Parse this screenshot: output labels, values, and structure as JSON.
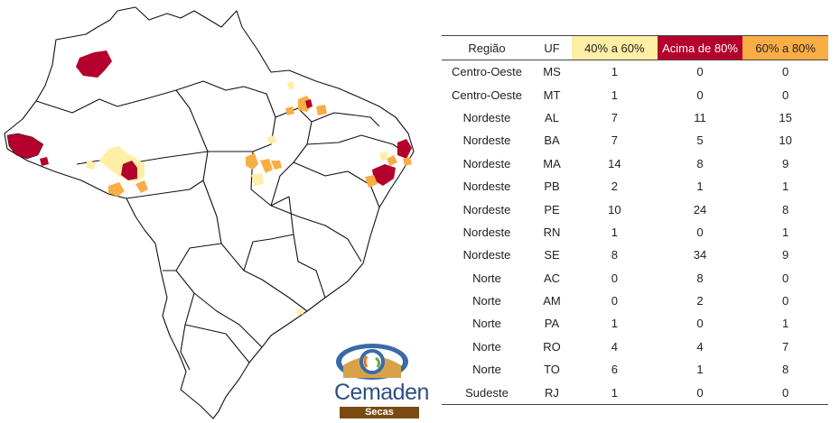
{
  "table": {
    "headers": [
      "Região",
      "UF",
      "40% a 60%",
      "Acima de 80%",
      "60% a 80%"
    ],
    "header_colors": [
      "#ffffff",
      "#ffffff",
      "#ffeea5",
      "#b3002d",
      "#f9ad45"
    ],
    "rows": [
      [
        "Centro-Oeste",
        "MS",
        "1",
        "0",
        "0"
      ],
      [
        "Centro-Oeste",
        "MT",
        "1",
        "0",
        "0"
      ],
      [
        "Nordeste",
        "AL",
        "7",
        "11",
        "15"
      ],
      [
        "Nordeste",
        "BA",
        "7",
        "5",
        "10"
      ],
      [
        "Nordeste",
        "MA",
        "14",
        "8",
        "9"
      ],
      [
        "Nordeste",
        "PB",
        "2",
        "1",
        "1"
      ],
      [
        "Nordeste",
        "PE",
        "10",
        "24",
        "8"
      ],
      [
        "Nordeste",
        "RN",
        "1",
        "0",
        "1"
      ],
      [
        "Nordeste",
        "SE",
        "8",
        "34",
        "9"
      ],
      [
        "Norte",
        "AC",
        "0",
        "8",
        "0"
      ],
      [
        "Norte",
        "AM",
        "0",
        "2",
        "0"
      ],
      [
        "Norte",
        "PA",
        "1",
        "0",
        "1"
      ],
      [
        "Norte",
        "RO",
        "4",
        "4",
        "7"
      ],
      [
        "Norte",
        "TO",
        "6",
        "1",
        "8"
      ],
      [
        "Sudeste",
        "RJ",
        "1",
        "0",
        "0"
      ]
    ]
  },
  "map": {
    "colors": {
      "low": "#ffeea5",
      "mid": "#f9ad45",
      "high": "#b3002d",
      "outline": "#111111"
    }
  },
  "logo": {
    "name": "Cemaden",
    "subtitle": "Secas"
  }
}
